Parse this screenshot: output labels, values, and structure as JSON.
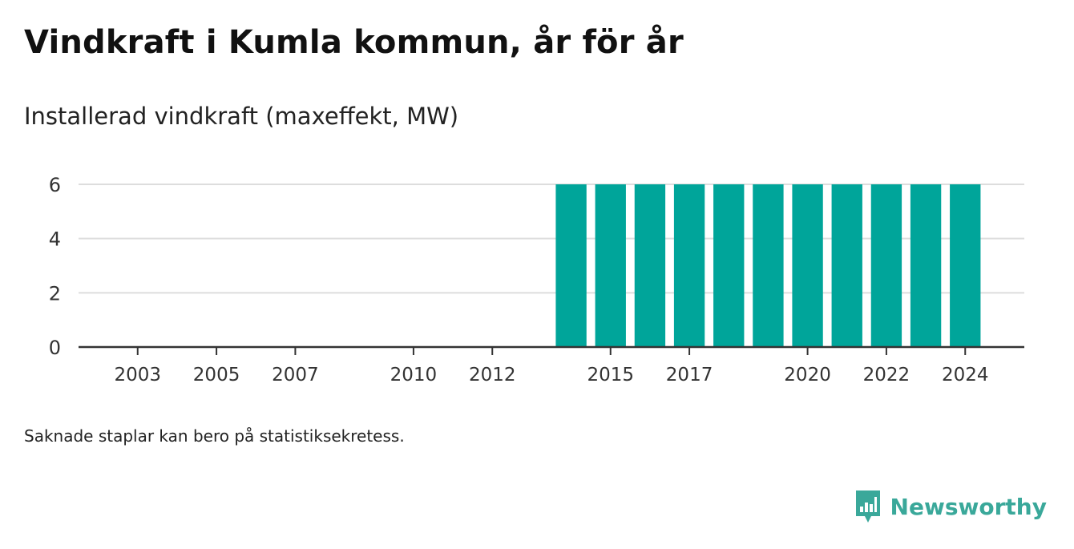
{
  "title": "Vindkraft i Kumla kommun, år för år",
  "subtitle": "Installerad vindkraft (maxeffekt, MW)",
  "footnote": "Saknade staplar kan bero på statistiksekretess.",
  "brand": {
    "name": "Newsworthy",
    "icon": "newsworthy-logo-icon"
  },
  "colors": {
    "bar": "#00a59a",
    "grid": "#dddddd",
    "axis": "#333333",
    "brand": "#3aa89a"
  },
  "chart_data": {
    "type": "bar",
    "x": [
      2003,
      2004,
      2005,
      2006,
      2007,
      2008,
      2009,
      2010,
      2011,
      2012,
      2013,
      2014,
      2015,
      2016,
      2017,
      2018,
      2019,
      2020,
      2021,
      2022,
      2023,
      2024
    ],
    "values": [
      0,
      0,
      0,
      0,
      0,
      null,
      null,
      0,
      0,
      0,
      null,
      6,
      6,
      6,
      6,
      6,
      6,
      6,
      6,
      6,
      6,
      6
    ],
    "x_ticks": [
      2003,
      2005,
      2007,
      2010,
      2012,
      2015,
      2017,
      2020,
      2022,
      2024
    ],
    "y_ticks": [
      0,
      2,
      4,
      6
    ],
    "ylim": [
      0,
      6
    ],
    "xlim": [
      2001.5,
      2025.5
    ],
    "grid": true,
    "xlabel": "",
    "ylabel": ""
  }
}
